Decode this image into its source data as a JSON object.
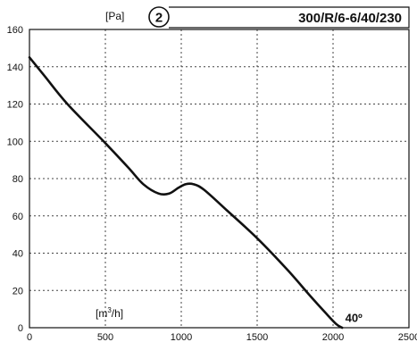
{
  "header": {
    "y_unit": "[Pa]",
    "badge_number": "2",
    "model": "300/R/6-6/40/230"
  },
  "chart_data": {
    "type": "line",
    "title": "300/R/6-6/40/230",
    "xlabel": "[m3/h]",
    "ylabel": "[Pa]",
    "xlim": [
      0,
      2500
    ],
    "ylim": [
      0,
      160
    ],
    "x_ticks": [
      0,
      500,
      1000,
      1500,
      2000,
      2500
    ],
    "y_ticks": [
      0,
      20,
      40,
      60,
      80,
      100,
      120,
      140,
      160
    ],
    "grid": true,
    "x_unit_label": {
      "prefix": "[m",
      "sup": "3",
      "suffix": "/h]"
    },
    "series": [
      {
        "x": [
          0,
          100,
          250,
          500,
          650,
          750,
          850,
          920,
          980,
          1030,
          1080,
          1150,
          1300,
          1500,
          1700,
          1850,
          1950,
          2020,
          2060
        ],
        "y": [
          145,
          135,
          120,
          99,
          86,
          77,
          72,
          72,
          75,
          77,
          77,
          74,
          63,
          48,
          31,
          17,
          8,
          2,
          0
        ]
      }
    ],
    "annotations": [
      {
        "text": "40º",
        "x": 2080,
        "y": 3
      }
    ]
  }
}
